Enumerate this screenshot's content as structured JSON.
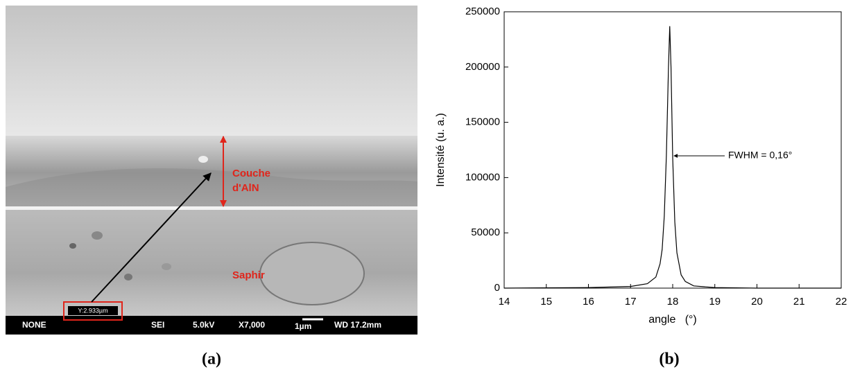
{
  "image_panel": {
    "layer_label": [
      "Couche",
      "d'AlN"
    ],
    "substrate_label": "Saphir",
    "measurement": "Y:2.933µm",
    "info_bar": [
      "NONE",
      "SEI",
      "5.0kV",
      "X7,000",
      "1µm",
      "WD 17.2mm"
    ],
    "caption": "(a)"
  },
  "chart_data": {
    "type": "line",
    "caption": "(b)",
    "x_label": "angle   (°)",
    "y_label": "Intensité (u. a.)",
    "annotation": "FWHM = 0,16°",
    "color": "#000000",
    "x": [
      14,
      16,
      17,
      17.4,
      17.6,
      17.7,
      17.75,
      17.8,
      17.85,
      17.9,
      17.93,
      17.96,
      18.0,
      18.05,
      18.1,
      18.2,
      18.3,
      18.5,
      19,
      20,
      22
    ],
    "values": [
      0,
      500,
      1500,
      4000,
      10000,
      22000,
      35000,
      65000,
      120000,
      200000,
      237000,
      200000,
      118000,
      60000,
      32000,
      12000,
      6000,
      2000,
      500,
      0,
      0
    ],
    "xlim": [
      14,
      22
    ],
    "xticks": [
      14,
      15,
      16,
      17,
      18,
      19,
      20,
      21,
      22
    ],
    "ylim": [
      0,
      250000
    ],
    "yticks": [
      0,
      50000,
      100000,
      150000,
      200000,
      250000
    ]
  }
}
